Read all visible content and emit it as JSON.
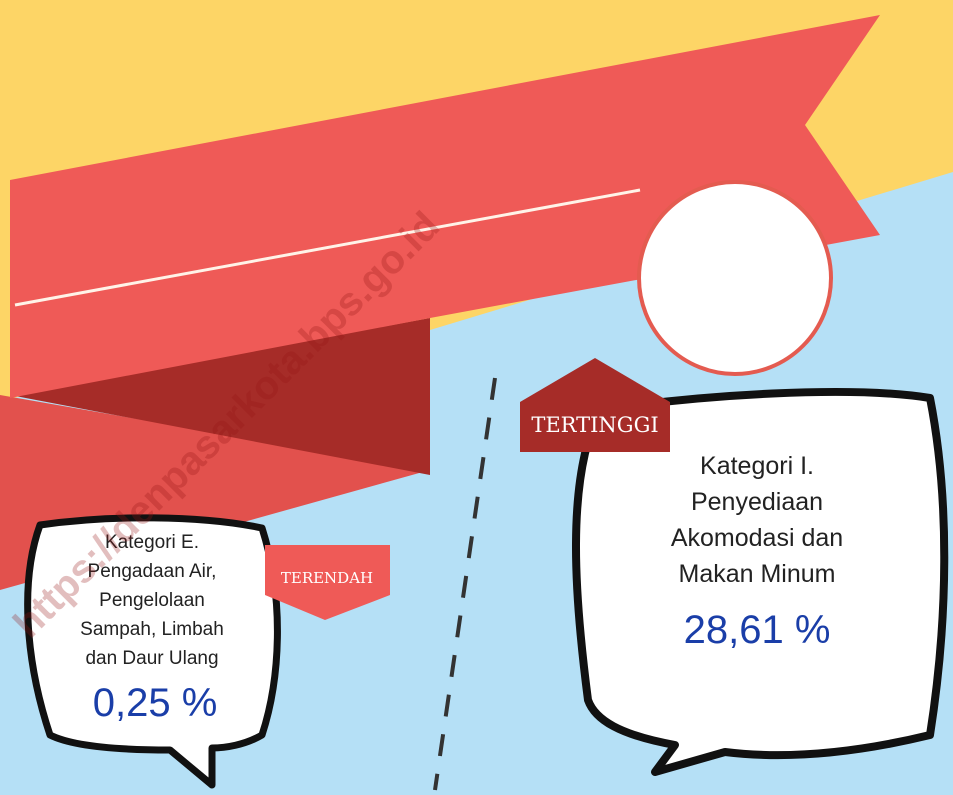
{
  "watermark": "https://denpasarkota.bps.go.id",
  "highest": {
    "tag": "TERTINGGI",
    "lines": [
      "Kategori I.",
      "Penyediaan",
      "Akomodasi dan",
      "Makan Minum"
    ],
    "value": "28,61 %"
  },
  "lowest": {
    "tag": "TERENDAH",
    "lines": [
      "Kategori E.",
      "Pengadaan Air,",
      "Pengelolaan",
      "Sampah, Limbah",
      "dan Daur Ulang"
    ],
    "value": "0,25 %"
  }
}
